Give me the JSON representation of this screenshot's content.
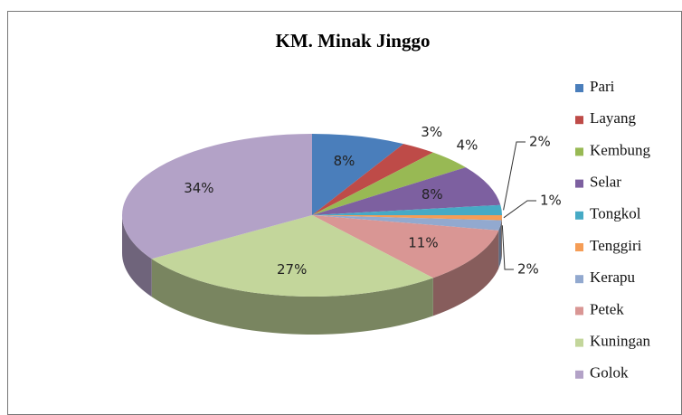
{
  "chart_data": {
    "type": "pie",
    "title": "KM. Minak Jinggo",
    "categories": [
      "Pari",
      "Layang",
      "Kembung",
      "Selar",
      "Tongkol",
      "Tenggiri",
      "Kerapu",
      "Petek",
      "Kuningan",
      "Golok"
    ],
    "values": [
      8,
      3,
      4,
      8,
      2,
      1,
      2,
      11,
      27,
      34
    ],
    "value_labels": [
      "8%",
      "3%",
      "4%",
      "8%",
      "2%",
      "1%",
      "2%",
      "11%",
      "27%",
      "34%"
    ],
    "colors": [
      "#4a7ebb",
      "#be4b48",
      "#98b954",
      "#7d60a0",
      "#46aac5",
      "#f59d56",
      "#92a9cf",
      "#d99694",
      "#c3d69b",
      "#b3a2c7"
    ],
    "legend": "right"
  }
}
